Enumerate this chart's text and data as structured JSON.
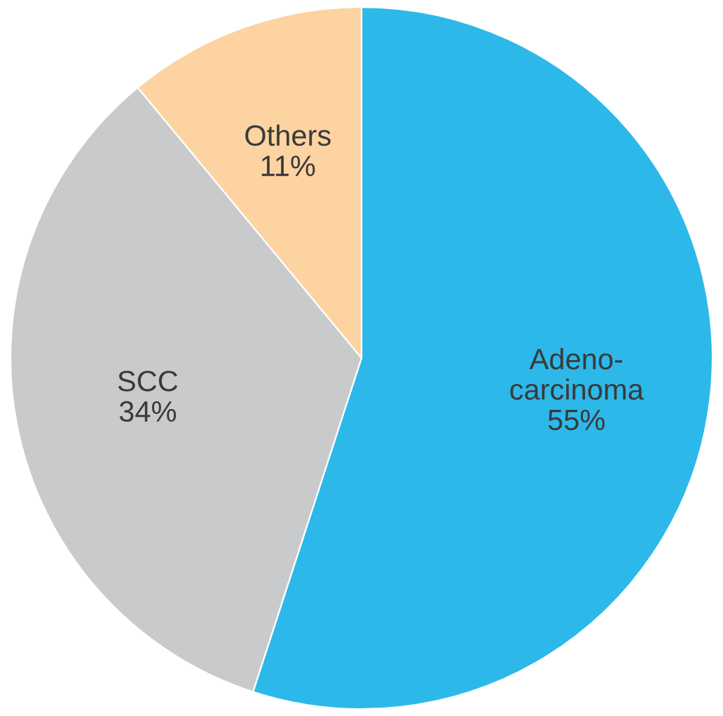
{
  "chart_data": {
    "type": "pie",
    "categories": [
      "Adeno-\ncarcinoma",
      "SCC",
      "Others"
    ],
    "values": [
      55,
      34,
      11
    ],
    "value_labels": [
      "55%",
      "34%",
      "11%"
    ],
    "colors": [
      "#2db8ea",
      "#c9cacc",
      "#fcd3a1"
    ]
  }
}
